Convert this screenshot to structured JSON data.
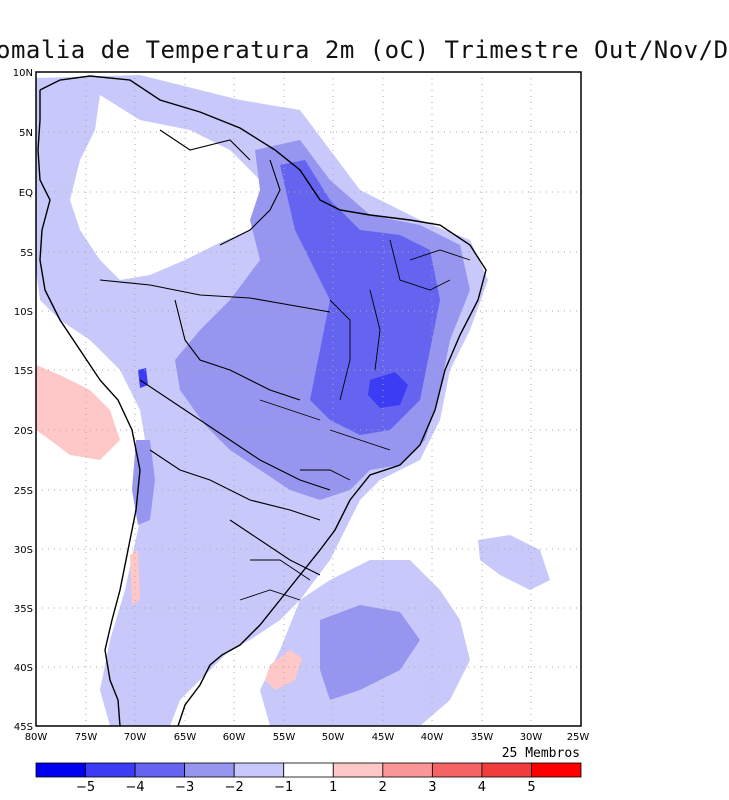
{
  "title": "omalia de Temperatura 2m (oC) Trimestre Out/Nov/D",
  "members_label": "25 Membros",
  "lat_labels": [
    "10N",
    "5N",
    "EQ",
    "5S",
    "10S",
    "15S",
    "20S",
    "25S",
    "30S",
    "35S",
    "40S",
    "45S"
  ],
  "lon_labels": [
    "80W",
    "75W",
    "70W",
    "65W",
    "60W",
    "55W",
    "50W",
    "45W",
    "40W",
    "35W",
    "30W",
    "25W"
  ],
  "colorbar": {
    "ticks": [
      "−5",
      "−4",
      "−3",
      "−2",
      "−1",
      "1",
      "2",
      "3",
      "4",
      "5"
    ],
    "colors": [
      "#0000f0",
      "#3c3cf5",
      "#6464f0",
      "#9696f0",
      "#c8c8fa",
      "#ffffff",
      "#ffc8c8",
      "#fa9696",
      "#f56464",
      "#f03c3c",
      "#ff0000"
    ]
  },
  "colors": {
    "anom_-1": "#c8c8fa",
    "anom_-2": "#9696f0",
    "anom_-3": "#6464f0",
    "anom_-4": "#3c3cf5",
    "anom_1": "#ffc8c8"
  }
}
